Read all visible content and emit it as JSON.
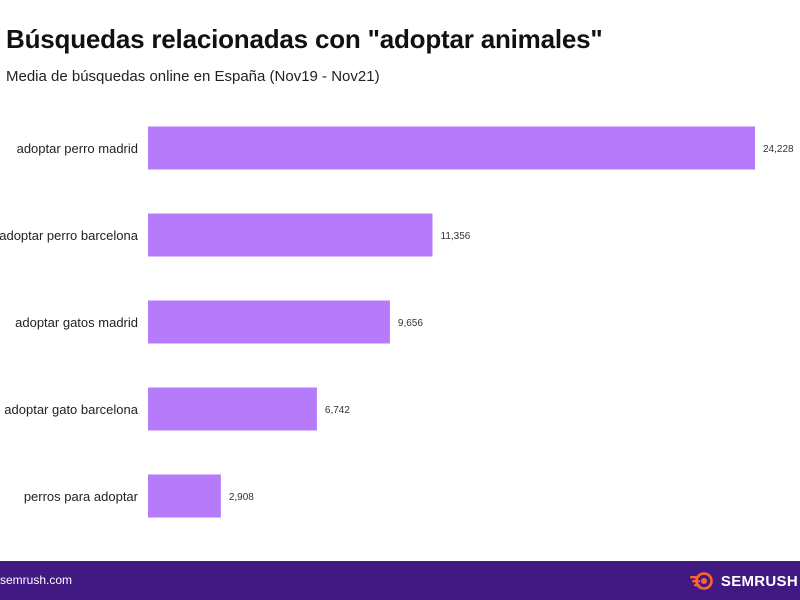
{
  "header": {
    "title": "Búsquedas relacionadas con \"adoptar animales\"",
    "subtitle": "Media de búsquedas online en España (Nov19 - Nov21)"
  },
  "footer": {
    "url": "semrush.com",
    "brand": "SEMRUSH"
  },
  "colors": {
    "bar": "#b57bfb",
    "footer_bg": "#421983",
    "brand_accent": "#ff642d"
  },
  "icons": {
    "brand_logo": "semrush-fireball-icon"
  },
  "chart_data": {
    "type": "bar",
    "orientation": "horizontal",
    "categories": [
      "adoptar perro madrid",
      "adoptar perro barcelona",
      "adoptar gatos madrid",
      "adoptar gato barcelona",
      "perros para adoptar"
    ],
    "values": [
      24228,
      11356,
      9656,
      6742,
      2908
    ],
    "value_labels": [
      "24,228",
      "11,356",
      "9,656",
      "6,742",
      "2,908"
    ],
    "title": "Búsquedas relacionadas con \"adoptar animales\"",
    "subtitle": "Media de búsquedas online en España (Nov19 - Nov21)",
    "xlabel": "",
    "ylabel": "",
    "xlim": [
      0,
      24228
    ],
    "grid": false,
    "legend": "none"
  }
}
